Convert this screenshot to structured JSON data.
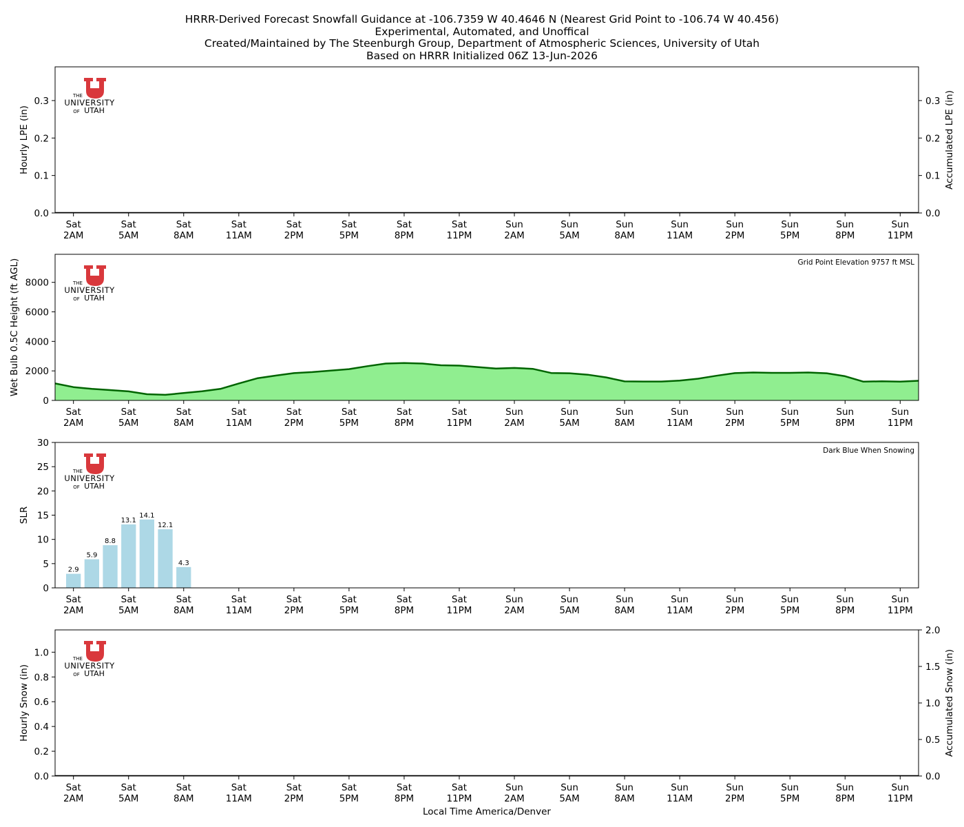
{
  "header": {
    "line1": "HRRR-Derived Forecast Snowfall Guidance at -106.7359 W 40.4646 N (Nearest Grid Point to -106.74 W 40.456)",
    "line2": "Experimental, Automated, and Unoffical",
    "line3": "Created/Maintained by The Steenburgh Group, Department of Atmospheric Sciences, University of Utah",
    "line4": "Based on HRRR Initialized 06Z 13-Jun-2026"
  },
  "logo": {
    "the": "THE",
    "university": "UNIVERSITY",
    "of": "OF",
    "utah": "UTAH",
    "color": "#d9383c"
  },
  "time_axis": {
    "ticks": [
      [
        "Sat",
        "2AM"
      ],
      [
        "Sat",
        "5AM"
      ],
      [
        "Sat",
        "8AM"
      ],
      [
        "Sat",
        "11AM"
      ],
      [
        "Sat",
        "2PM"
      ],
      [
        "Sat",
        "5PM"
      ],
      [
        "Sat",
        "8PM"
      ],
      [
        "Sat",
        "11PM"
      ],
      [
        "Sun",
        "2AM"
      ],
      [
        "Sun",
        "5AM"
      ],
      [
        "Sun",
        "8AM"
      ],
      [
        "Sun",
        "11AM"
      ],
      [
        "Sun",
        "2PM"
      ],
      [
        "Sun",
        "5PM"
      ],
      [
        "Sun",
        "8PM"
      ],
      [
        "Sun",
        "11PM"
      ]
    ],
    "xlabel": "Local Time America/Denver"
  },
  "chart_data": [
    {
      "type": "bar",
      "ylabel": "Hourly LPE (in)",
      "y2label": "Accumulated LPE (in)",
      "ylim": [
        0,
        0.39
      ],
      "yticks": [
        0.0,
        0.1,
        0.2,
        0.3
      ],
      "y2lim": [
        0,
        0.39
      ],
      "y2ticks": [
        0.0,
        0.1,
        0.2,
        0.3
      ],
      "hourly": [],
      "accumulated": 0.0,
      "x_range_hours": [
        1.0,
        48.0
      ]
    },
    {
      "type": "area",
      "ylabel": "Wet Bulb 0.5C Height (ft AGL)",
      "annotation": "Grid Point Elevation 9757 ft MSL",
      "ylim": [
        0,
        9900
      ],
      "yticks": [
        0,
        2000,
        4000,
        6000,
        8000
      ],
      "fill_color": "#90ee90",
      "line_color": "#006400",
      "x_range_hours": [
        1.0,
        48.0
      ],
      "points": [
        [
          1,
          1150
        ],
        [
          2,
          900
        ],
        [
          3,
          780
        ],
        [
          4,
          700
        ],
        [
          5,
          610
        ],
        [
          6,
          420
        ],
        [
          7,
          380
        ],
        [
          8,
          500
        ],
        [
          9,
          620
        ],
        [
          10,
          780
        ],
        [
          11,
          1150
        ],
        [
          12,
          1500
        ],
        [
          13,
          1680
        ],
        [
          14,
          1850
        ],
        [
          15,
          1920
        ],
        [
          16,
          2020
        ],
        [
          17,
          2120
        ],
        [
          18,
          2320
        ],
        [
          19,
          2500
        ],
        [
          20,
          2530
        ],
        [
          21,
          2500
        ],
        [
          22,
          2380
        ],
        [
          23,
          2360
        ],
        [
          24,
          2260
        ],
        [
          25,
          2160
        ],
        [
          26,
          2200
        ],
        [
          27,
          2140
        ],
        [
          28,
          1860
        ],
        [
          29,
          1840
        ],
        [
          30,
          1740
        ],
        [
          31,
          1560
        ],
        [
          32,
          1290
        ],
        [
          33,
          1280
        ],
        [
          34,
          1280
        ],
        [
          35,
          1340
        ],
        [
          36,
          1470
        ],
        [
          37,
          1670
        ],
        [
          38,
          1850
        ],
        [
          39,
          1890
        ],
        [
          40,
          1870
        ],
        [
          41,
          1870
        ],
        [
          42,
          1890
        ],
        [
          43,
          1840
        ],
        [
          44,
          1640
        ],
        [
          45,
          1270
        ],
        [
          46,
          1300
        ],
        [
          47,
          1270
        ],
        [
          48,
          1330
        ]
      ]
    },
    {
      "type": "bar",
      "ylabel": "SLR",
      "annotation": "Dark Blue When Snowing",
      "ylim": [
        0,
        30
      ],
      "yticks": [
        0,
        5,
        10,
        15,
        20,
        25,
        30
      ],
      "bar_color": "#add8e6",
      "x_range_hours": [
        1.0,
        48.0
      ],
      "bars": [
        {
          "hour": 2,
          "value": 2.9,
          "label": "2.9"
        },
        {
          "hour": 3,
          "value": 5.9,
          "label": "5.9"
        },
        {
          "hour": 4,
          "value": 8.8,
          "label": "8.8"
        },
        {
          "hour": 5,
          "value": 13.1,
          "label": "13.1"
        },
        {
          "hour": 6,
          "value": 14.1,
          "label": "14.1"
        },
        {
          "hour": 7,
          "value": 12.1,
          "label": "12.1"
        },
        {
          "hour": 8,
          "value": 4.3,
          "label": "4.3"
        }
      ]
    },
    {
      "type": "bar",
      "ylabel": "Hourly Snow (in)",
      "y2label": "Accumulated Snow (in)",
      "ylim": [
        0,
        1.18
      ],
      "yticks": [
        0.0,
        0.2,
        0.4,
        0.6,
        0.8,
        1.0
      ],
      "y2lim": [
        0,
        2.0
      ],
      "y2ticks": [
        0.0,
        0.5,
        1.0,
        1.5,
        2.0
      ],
      "hourly": [],
      "accumulated": 0.0,
      "x_range_hours": [
        1.0,
        48.0
      ]
    }
  ]
}
